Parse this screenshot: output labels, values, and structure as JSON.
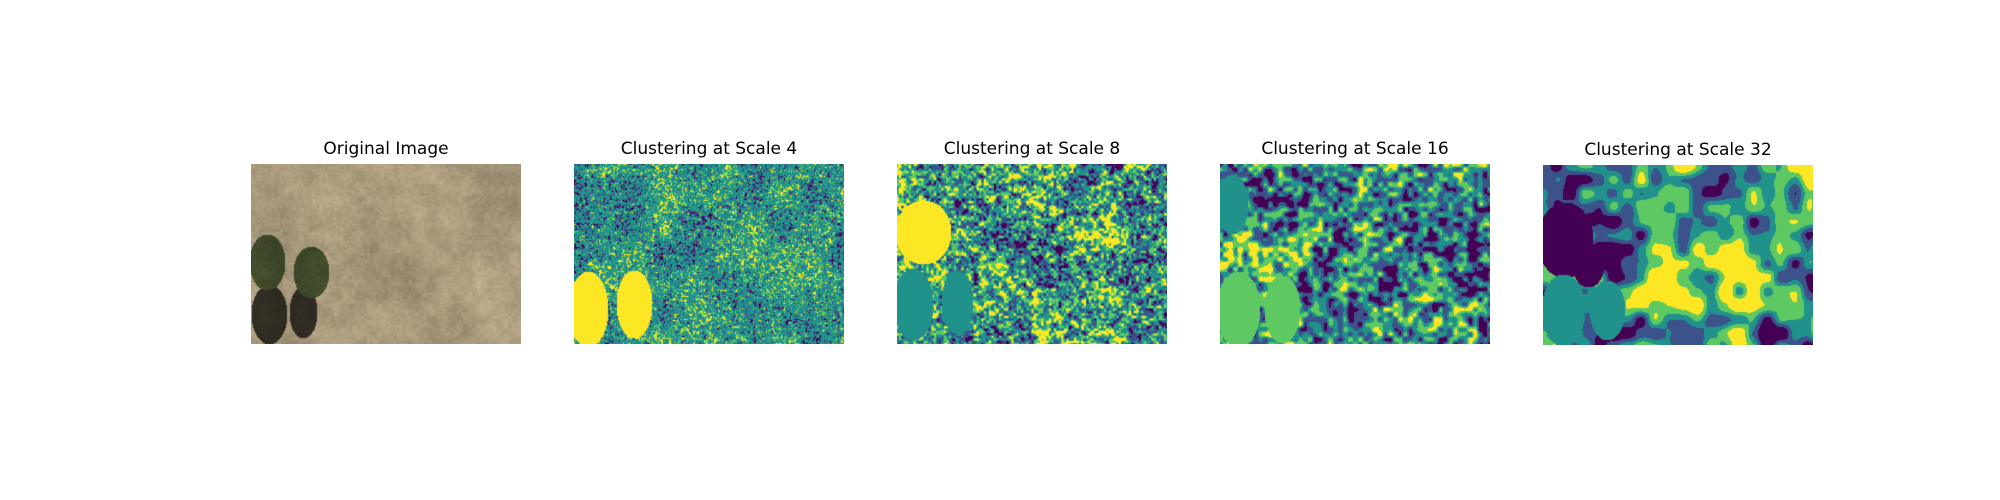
{
  "figure": {
    "panels": [
      {
        "title": "Original Image",
        "kind": "photo"
      },
      {
        "title": "Clustering at Scale 4",
        "kind": "clusters",
        "scale": 4
      },
      {
        "title": "Clustering at Scale 8",
        "kind": "clusters",
        "scale": 8
      },
      {
        "title": "Clustering at Scale 16",
        "kind": "clusters",
        "scale": 16
      },
      {
        "title": "Clustering at Scale 32",
        "kind": "clusters",
        "scale": 32
      }
    ]
  },
  "colors": {
    "cluster_palette": [
      "#440154",
      "#3b528b",
      "#21918c",
      "#5ec962",
      "#fde725"
    ],
    "photo_ground": "#a89a7c",
    "photo_shrub": "#3f4a2a",
    "photo_shadow": "#2e2a22"
  }
}
